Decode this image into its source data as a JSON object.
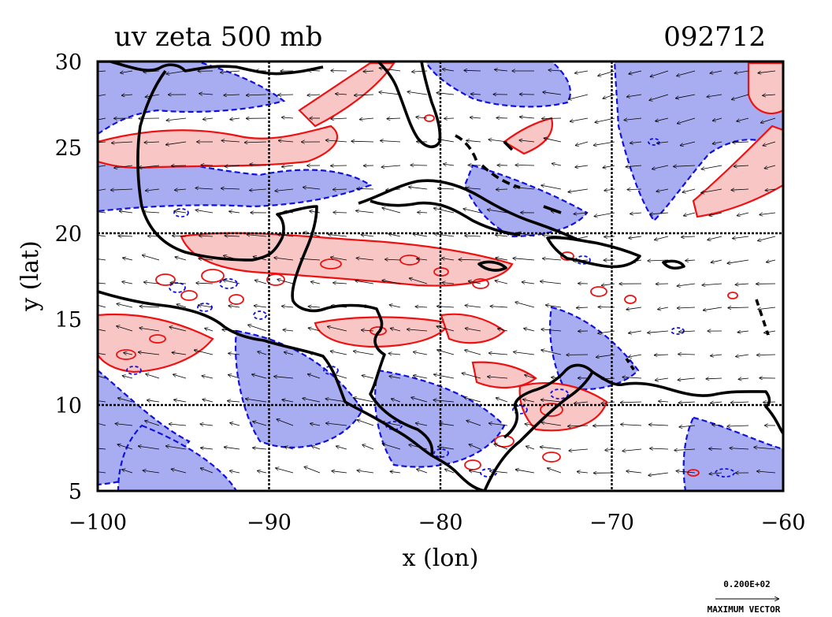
{
  "map": {
    "title_left": "uv zeta 500 mb",
    "title_right": "092712",
    "x_axis_label": "x (lon)",
    "y_axis_label": "y (lat)",
    "x_ticks": [
      "-100",
      "-90",
      "-80",
      "-70",
      "-60"
    ],
    "y_ticks": [
      "30",
      "25",
      "20",
      "15",
      "10",
      "5"
    ],
    "lon_range": [
      -100,
      -60
    ],
    "lat_range": [
      5,
      30
    ],
    "grid_lons": [
      -90,
      -80,
      -70
    ],
    "grid_lats": [
      20,
      10
    ],
    "legend": {
      "vector_magnitude": "0.200E+02",
      "vector_label": "MAXIMUM VECTOR"
    },
    "colors": {
      "positive_fill": "#f9c6c6",
      "positive_contour": "#ee1111",
      "negative_fill": "#a8acf0",
      "negative_contour": "#1111dd",
      "coastline": "#000000"
    }
  }
}
